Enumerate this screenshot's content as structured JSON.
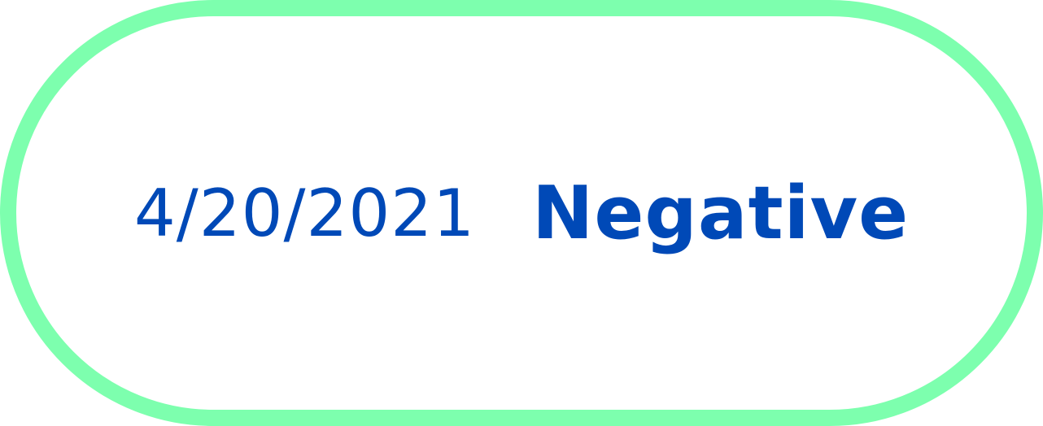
{
  "result_card": {
    "date": "4/20/2021",
    "status": "Negative",
    "border_color": "#7dffae",
    "text_color": "#0049b7"
  }
}
